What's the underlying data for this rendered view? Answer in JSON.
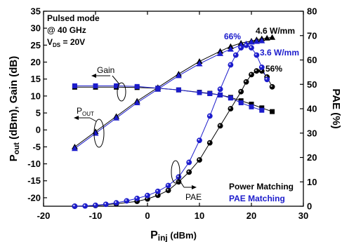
{
  "chart_data": {
    "type": "line",
    "x": {
      "label": "P",
      "label_sub": "inj",
      "label_unit": " (dBm)",
      "lim": [
        -20,
        30
      ],
      "ticks": [
        -20,
        -10,
        0,
        10,
        20,
        30
      ]
    },
    "y_left": {
      "label_html": "P_OUT (dBm), Gain (dB)",
      "label_parts": [
        "P",
        "out",
        " (dBm), Gain (dB)"
      ],
      "lim": [
        -22.5,
        35
      ],
      "ticks": [
        -20,
        -15,
        -10,
        -5,
        0,
        5,
        10,
        15,
        20,
        25,
        30,
        35
      ]
    },
    "y_right": {
      "label": "PAE (%)",
      "lim": [
        0,
        80
      ],
      "ticks": [
        0,
        10,
        20,
        30,
        40,
        50,
        60,
        70,
        80
      ]
    },
    "conditions": {
      "line1": "Pulsed mode",
      "line2": "@ 40 GHz",
      "line3_v": "V",
      "line3_sub": "DS",
      "line3_rest": " = 20V"
    },
    "legend": {
      "power": "Power Matching",
      "pae": "PAE Matching"
    },
    "colors": {
      "power": "#000000",
      "pae": "#1c1ccc"
    },
    "annotations": {
      "gain": "Gain",
      "pout_p": "P",
      "pout_sub": "OUT",
      "pae": "PAE",
      "pae_max_pae": "66%",
      "pae_max_power": "56%",
      "pout_power": "4.6 W/mm",
      "pout_pae": "3.6 W/mm"
    },
    "series": [
      {
        "name": "Pout - Power Matching",
        "axis": "left",
        "marker": "triangle",
        "color": "power",
        "x": [
          -14,
          -10,
          -6,
          -2,
          2,
          6,
          10,
          14,
          16,
          18,
          20,
          21,
          22,
          23,
          24
        ],
        "y": [
          -5,
          -0.5,
          4,
          8.5,
          12.5,
          16.5,
          20.2,
          23.2,
          24.6,
          25.6,
          26.2,
          26.6,
          26.9,
          27.1,
          27.3
        ]
      },
      {
        "name": "Pout - PAE Matching",
        "axis": "left",
        "marker": "triangle",
        "color": "pae",
        "x": [
          -14,
          -10,
          -6,
          -2,
          2,
          6,
          10,
          14,
          16,
          18,
          19,
          20,
          21,
          22
        ],
        "y": [
          -5.5,
          -1,
          3.5,
          8,
          12,
          16,
          19.5,
          22.5,
          23.8,
          25,
          25.4,
          25.9,
          26.1,
          26.3
        ]
      },
      {
        "name": "Gain - Power Matching",
        "axis": "left",
        "marker": "square",
        "color": "power",
        "x": [
          -14,
          -10,
          -6,
          -2,
          2,
          6,
          10,
          12,
          14,
          16,
          18,
          20,
          22,
          24
        ],
        "y": [
          12.6,
          12.6,
          12.6,
          12.5,
          12.3,
          11.8,
          11.1,
          10.8,
          10.3,
          9.6,
          8.6,
          7.6,
          6.5,
          5.4
        ]
      },
      {
        "name": "Gain - PAE Matching",
        "axis": "left",
        "marker": "square",
        "color": "pae",
        "x": [
          -14,
          -10,
          -6,
          -2,
          2,
          6,
          10,
          12,
          14,
          16,
          18,
          20,
          22
        ],
        "y": [
          13,
          13,
          13,
          12.8,
          12.3,
          11.8,
          11,
          10.7,
          10.3,
          9.4,
          8,
          6.8,
          5.8
        ]
      },
      {
        "name": "PAE - Power Matching",
        "axis": "right",
        "marker": "circle",
        "color": "power",
        "x": [
          -14,
          -10,
          -6,
          -2,
          0,
          2,
          4,
          6,
          8,
          10,
          12,
          14,
          16,
          18,
          19,
          20,
          21,
          22,
          23,
          24
        ],
        "y": [
          0,
          0.3,
          1,
          2,
          3,
          4.5,
          6.5,
          10,
          14,
          19,
          26,
          33,
          40,
          47,
          51,
          54,
          55.5,
          55.5,
          53,
          49
        ]
      },
      {
        "name": "PAE - PAE Matching",
        "axis": "right",
        "marker": "circle",
        "color": "pae",
        "x": [
          -14,
          -12,
          -10,
          -8,
          -6,
          -4,
          -2,
          0,
          2,
          4,
          6,
          8,
          10,
          12,
          14,
          16,
          17,
          18,
          19,
          20,
          21,
          22,
          23
        ],
        "y": [
          0,
          0.1,
          0.4,
          0.8,
          1.4,
          2.2,
          3.2,
          4.4,
          6.1,
          8.5,
          12,
          18,
          27,
          37,
          48,
          58,
          62,
          65,
          66,
          65,
          62,
          57,
          52
        ]
      }
    ]
  }
}
